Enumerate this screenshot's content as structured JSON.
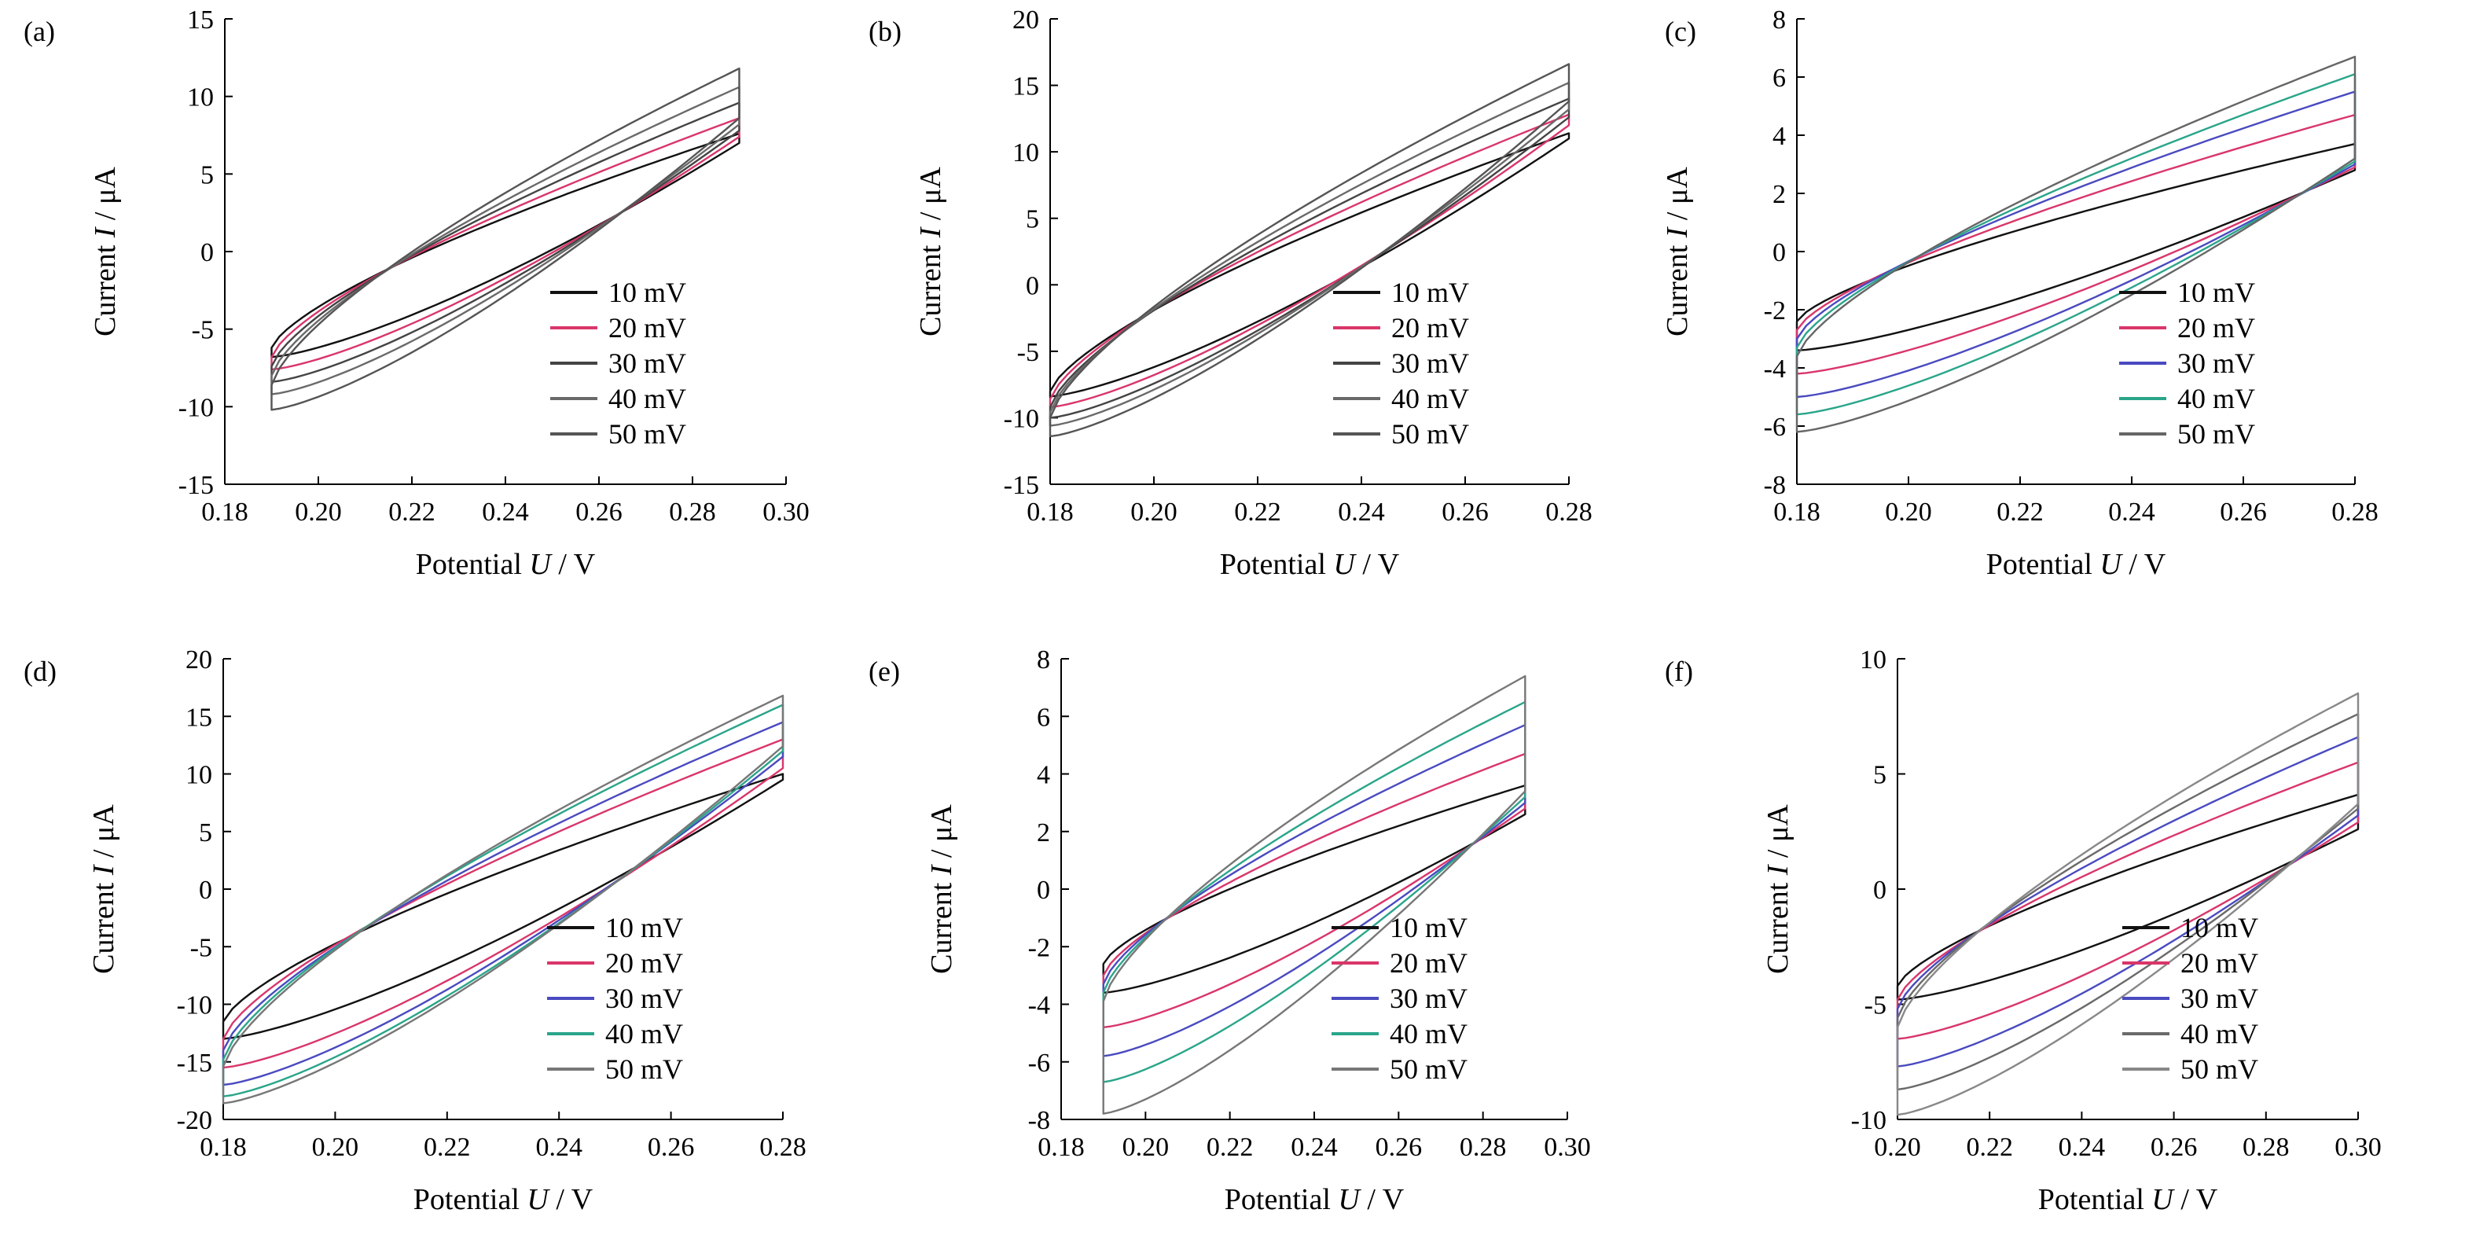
{
  "chart_data": [
    {
      "panel_label": "(a)",
      "type": "line",
      "xlabel": "Potential U / V",
      "ylabel": "Current I / μA",
      "xlim": [
        0.18,
        0.3
      ],
      "ylim": [
        -15,
        15
      ],
      "xticks": [
        0.18,
        0.2,
        0.22,
        0.24,
        0.26,
        0.28,
        0.3
      ],
      "yticks": [
        -15,
        -10,
        -5,
        0,
        5,
        10,
        15
      ],
      "scan_window": [
        0.19,
        0.29
      ],
      "legend_position": "lower-right",
      "series": [
        {
          "name": "10 mV",
          "color": "#111111",
          "lower_start": -6.8,
          "lower_end": 7.0,
          "upper_start": -6.2,
          "upper_end": 7.6
        },
        {
          "name": "20 mV",
          "color": "#d9366a",
          "lower_start": -7.6,
          "lower_end": 7.4,
          "upper_start": -6.8,
          "upper_end": 8.6
        },
        {
          "name": "30 mV",
          "color": "#444444",
          "lower_start": -8.4,
          "lower_end": 7.8,
          "upper_start": -7.4,
          "upper_end": 9.6
        },
        {
          "name": "40 mV",
          "color": "#6a6a6a",
          "lower_start": -9.2,
          "lower_end": 8.2,
          "upper_start": -8.0,
          "upper_end": 10.6
        },
        {
          "name": "50 mV",
          "color": "#555555",
          "lower_start": -10.2,
          "lower_end": 8.6,
          "upper_start": -8.6,
          "upper_end": 11.8
        }
      ]
    },
    {
      "panel_label": "(b)",
      "type": "line",
      "xlabel": "Potential U / V",
      "ylabel": "Current I / μA",
      "xlim": [
        0.18,
        0.28
      ],
      "ylim": [
        -15,
        20
      ],
      "xticks": [
        0.18,
        0.2,
        0.22,
        0.24,
        0.26,
        0.28
      ],
      "yticks": [
        -15,
        -10,
        -5,
        0,
        5,
        10,
        15,
        20
      ],
      "scan_window": [
        0.18,
        0.28
      ],
      "legend_position": "lower-right",
      "series": [
        {
          "name": "10 mV",
          "color": "#111111",
          "lower_start": -8.4,
          "lower_end": 11.0,
          "upper_start": -8.0,
          "upper_end": 11.4
        },
        {
          "name": "20 mV",
          "color": "#d9366a",
          "lower_start": -9.2,
          "lower_end": 12.0,
          "upper_start": -8.6,
          "upper_end": 12.8
        },
        {
          "name": "30 mV",
          "color": "#444444",
          "lower_start": -10.0,
          "lower_end": 12.6,
          "upper_start": -9.2,
          "upper_end": 14.0
        },
        {
          "name": "40 mV",
          "color": "#6a6a6a",
          "lower_start": -10.6,
          "lower_end": 13.2,
          "upper_start": -9.6,
          "upper_end": 15.2
        },
        {
          "name": "50 mV",
          "color": "#555555",
          "lower_start": -11.4,
          "lower_end": 13.8,
          "upper_start": -10.0,
          "upper_end": 16.6
        }
      ]
    },
    {
      "panel_label": "(c)",
      "type": "line",
      "xlabel": "Potential U / V",
      "ylabel": "Current I / μA",
      "xlim": [
        0.18,
        0.28
      ],
      "ylim": [
        -8,
        8
      ],
      "xticks": [
        0.18,
        0.2,
        0.22,
        0.24,
        0.26,
        0.28
      ],
      "yticks": [
        -8,
        -6,
        -4,
        -2,
        0,
        2,
        4,
        6,
        8
      ],
      "scan_window": [
        0.18,
        0.28
      ],
      "legend_position": "lower-right",
      "series": [
        {
          "name": "10 mV",
          "color": "#111111",
          "lower_start": -3.4,
          "lower_end": 2.8,
          "upper_start": -2.4,
          "upper_end": 3.7
        },
        {
          "name": "20 mV",
          "color": "#d9366a",
          "lower_start": -4.2,
          "lower_end": 2.9,
          "upper_start": -2.7,
          "upper_end": 4.7
        },
        {
          "name": "30 mV",
          "color": "#4a4ac0",
          "lower_start": -5.0,
          "lower_end": 3.0,
          "upper_start": -3.0,
          "upper_end": 5.5
        },
        {
          "name": "40 mV",
          "color": "#2aa58a",
          "lower_start": -5.6,
          "lower_end": 3.1,
          "upper_start": -3.3,
          "upper_end": 6.1
        },
        {
          "name": "50 mV",
          "color": "#666666",
          "lower_start": -6.2,
          "lower_end": 3.2,
          "upper_start": -3.6,
          "upper_end": 6.7
        }
      ]
    },
    {
      "panel_label": "(d)",
      "type": "line",
      "xlabel": "Potential U / V",
      "ylabel": "Current I / μA",
      "xlim": [
        0.18,
        0.28
      ],
      "ylim": [
        -20,
        20
      ],
      "xticks": [
        0.18,
        0.2,
        0.22,
        0.24,
        0.26,
        0.28
      ],
      "yticks": [
        -20,
        -15,
        -10,
        -5,
        0,
        5,
        10,
        15,
        20
      ],
      "scan_window": [
        0.18,
        0.28
      ],
      "legend_position": "lower-right",
      "series": [
        {
          "name": "10 mV",
          "color": "#111111",
          "lower_start": -13.0,
          "lower_end": 9.5,
          "upper_start": -11.5,
          "upper_end": 10.0
        },
        {
          "name": "20 mV",
          "color": "#d9366a",
          "lower_start": -15.5,
          "lower_end": 10.5,
          "upper_start": -13.0,
          "upper_end": 13.0
        },
        {
          "name": "30 mV",
          "color": "#4a4ac0",
          "lower_start": -17.0,
          "lower_end": 11.5,
          "upper_start": -14.0,
          "upper_end": 14.5
        },
        {
          "name": "40 mV",
          "color": "#2aa58a",
          "lower_start": -18.0,
          "lower_end": 12.0,
          "upper_start": -14.8,
          "upper_end": 16.0
        },
        {
          "name": "50 mV",
          "color": "#777777",
          "lower_start": -18.6,
          "lower_end": 12.4,
          "upper_start": -15.4,
          "upper_end": 16.8
        }
      ]
    },
    {
      "panel_label": "(e)",
      "type": "line",
      "xlabel": "Potential U / V",
      "ylabel": "Current I / μA",
      "xlim": [
        0.18,
        0.3
      ],
      "ylim": [
        -8,
        8
      ],
      "xticks": [
        0.18,
        0.2,
        0.22,
        0.24,
        0.26,
        0.28,
        0.3
      ],
      "yticks": [
        -8,
        -6,
        -4,
        -2,
        0,
        2,
        4,
        6,
        8
      ],
      "scan_window": [
        0.19,
        0.29
      ],
      "legend_position": "lower-right",
      "series": [
        {
          "name": "10 mV",
          "color": "#111111",
          "lower_start": -3.6,
          "lower_end": 2.6,
          "upper_start": -2.6,
          "upper_end": 3.6
        },
        {
          "name": "20 mV",
          "color": "#d9366a",
          "lower_start": -4.8,
          "lower_end": 2.8,
          "upper_start": -3.0,
          "upper_end": 4.7
        },
        {
          "name": "30 mV",
          "color": "#4a4ac0",
          "lower_start": -5.8,
          "lower_end": 3.0,
          "upper_start": -3.3,
          "upper_end": 5.7
        },
        {
          "name": "40 mV",
          "color": "#2aa58a",
          "lower_start": -6.7,
          "lower_end": 3.2,
          "upper_start": -3.6,
          "upper_end": 6.5
        },
        {
          "name": "50 mV",
          "color": "#777777",
          "lower_start": -7.8,
          "lower_end": 3.4,
          "upper_start": -3.9,
          "upper_end": 7.4
        }
      ]
    },
    {
      "panel_label": "(f)",
      "type": "line",
      "xlabel": "Potential U / V",
      "ylabel": "Current I / μA",
      "xlim": [
        0.2,
        0.3
      ],
      "ylim": [
        -10,
        10
      ],
      "xticks": [
        0.2,
        0.22,
        0.24,
        0.26,
        0.28,
        0.3
      ],
      "yticks": [
        -10,
        -5,
        0,
        5,
        10
      ],
      "scan_window": [
        0.2,
        0.3
      ],
      "legend_position": "lower-right",
      "series": [
        {
          "name": "10 mV",
          "color": "#111111",
          "lower_start": -4.8,
          "lower_end": 2.6,
          "upper_start": -4.2,
          "upper_end": 4.1
        },
        {
          "name": "20 mV",
          "color": "#d9366a",
          "lower_start": -6.5,
          "lower_end": 2.9,
          "upper_start": -4.8,
          "upper_end": 5.5
        },
        {
          "name": "30 mV",
          "color": "#4a4ac0",
          "lower_start": -7.7,
          "lower_end": 3.2,
          "upper_start": -5.2,
          "upper_end": 6.6
        },
        {
          "name": "40 mV",
          "color": "#6a6a6a",
          "lower_start": -8.7,
          "lower_end": 3.5,
          "upper_start": -5.6,
          "upper_end": 7.6
        },
        {
          "name": "50 mV",
          "color": "#888888",
          "lower_start": -9.8,
          "lower_end": 3.7,
          "upper_start": -6.0,
          "upper_end": 8.5
        }
      ]
    }
  ]
}
